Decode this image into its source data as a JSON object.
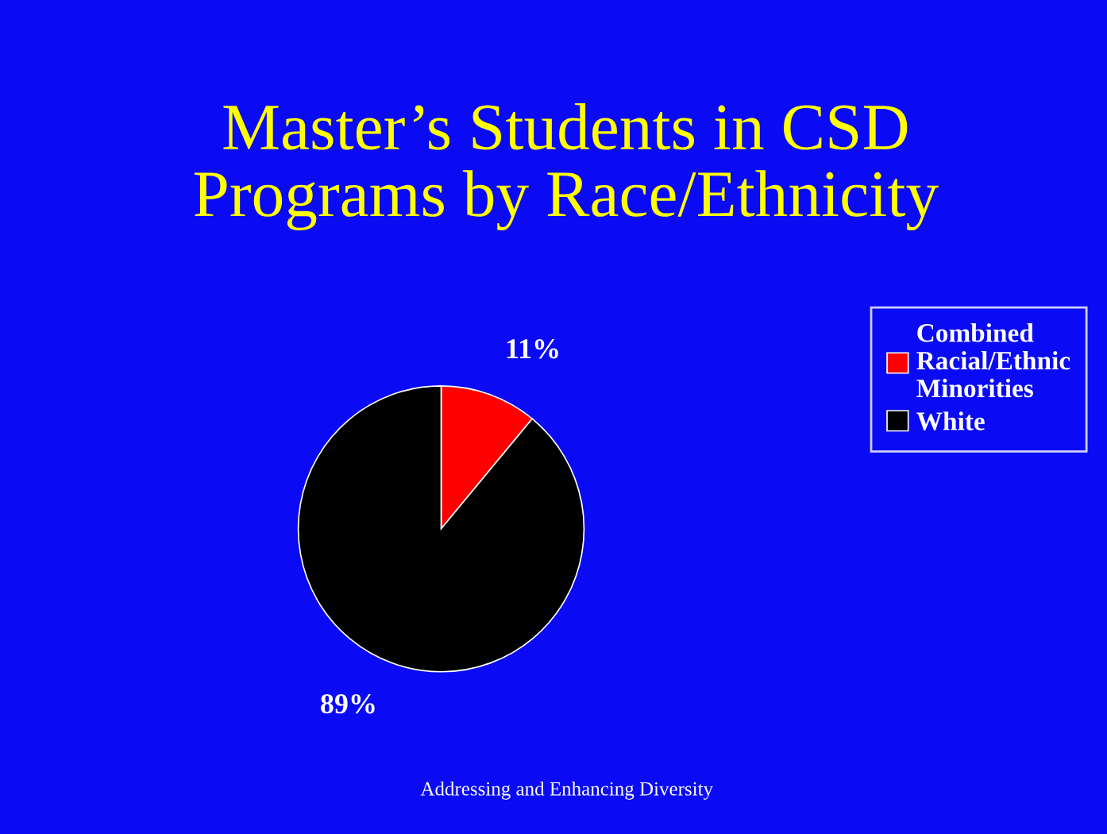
{
  "chart_data": {
    "type": "pie",
    "title": "Master’s Students in CSD\nPrograms by Race/Ethnicity",
    "categories": [
      "Combined\nRacial/Ethnic\nMinorities",
      "White"
    ],
    "values": [
      11,
      89
    ],
    "colors": [
      "#ff0000",
      "#000000"
    ],
    "value_labels": [
      "11%",
      "89%"
    ],
    "legend": "right",
    "annotations": [
      "Addressing and Enhancing Diversity"
    ]
  }
}
